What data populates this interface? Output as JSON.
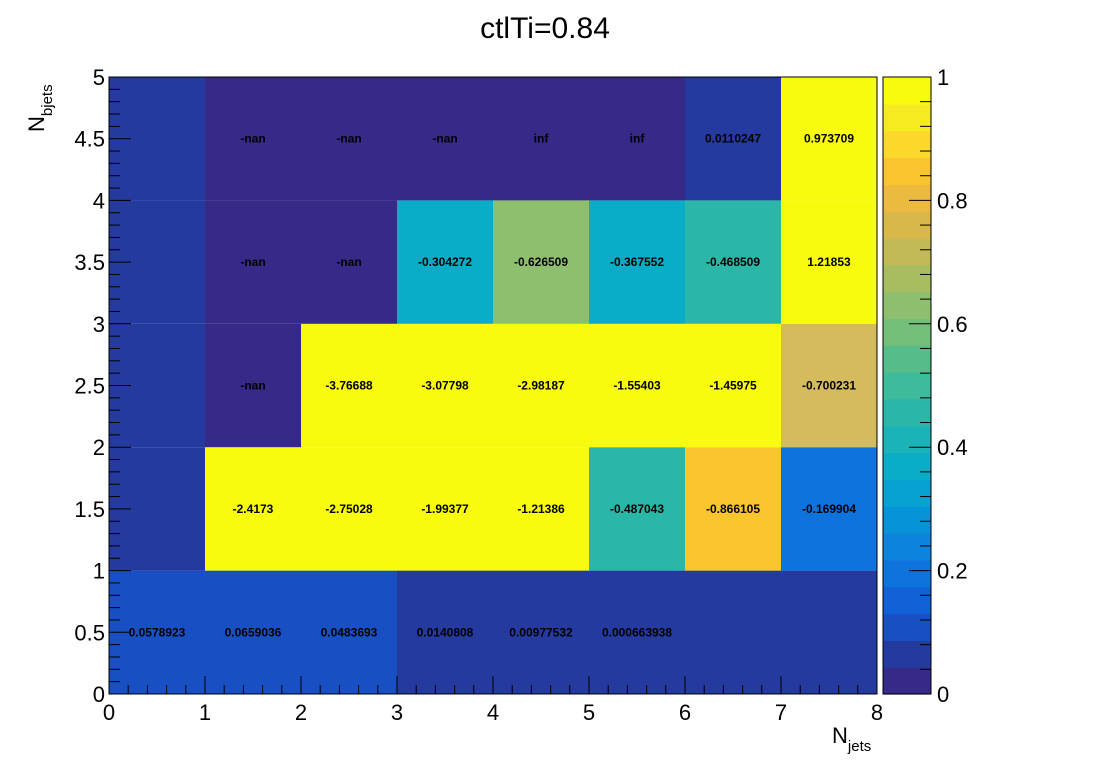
{
  "chart_data": {
    "type": "heatmap",
    "title": "ctlTi=0.84",
    "xlabel": {
      "main": "N",
      "sub": "jets"
    },
    "ylabel": {
      "main": "N",
      "sub": "bjets"
    },
    "xlim": [
      0,
      8
    ],
    "ylim": [
      0,
      5
    ],
    "x_bin_edges": [
      0,
      1,
      2,
      3,
      4,
      5,
      6,
      7,
      8
    ],
    "y_bin_edges": [
      0,
      1,
      2,
      3,
      4,
      5
    ],
    "x_ticks": [
      "0",
      "1",
      "2",
      "3",
      "4",
      "5",
      "6",
      "7",
      "8"
    ],
    "y_ticks": [
      "0",
      "0.5",
      "1",
      "1.5",
      "2",
      "2.5",
      "3",
      "3.5",
      "4",
      "4.5",
      "5"
    ],
    "zlim": [
      0,
      1
    ],
    "z_ticks": [
      "0",
      "0.2",
      "0.4",
      "0.6",
      "0.8",
      "1"
    ],
    "colorbar_colors": [
      "#352a87",
      "#243a9f",
      "#1850c4",
      "#1062d6",
      "#0e73dc",
      "#0d84dc",
      "#0793d8",
      "#07a2d0",
      "#0aadc7",
      "#1ab3b8",
      "#2bb7a8",
      "#3dbb9a",
      "#56bd8a",
      "#73bf7a",
      "#8ebf6e",
      "#a8bd62",
      "#c2b957",
      "#d9b84a",
      "#ecba3e",
      "#f9c52e",
      "#fad92a",
      "#f5eb20",
      "#f9fb0e"
    ],
    "cells": [
      {
        "x": 0,
        "y": 0,
        "label": "0.0578923",
        "color": "#1850c4"
      },
      {
        "x": 1,
        "y": 0,
        "label": "0.0659036",
        "color": "#1850c4"
      },
      {
        "x": 2,
        "y": 0,
        "label": "0.0483693",
        "color": "#1850c4"
      },
      {
        "x": 3,
        "y": 0,
        "label": "0.0140808",
        "color": "#243a9f"
      },
      {
        "x": 4,
        "y": 0,
        "label": "0.00977532",
        "color": "#243a9f"
      },
      {
        "x": 5,
        "y": 0,
        "label": "0.000663938",
        "color": "#243a9f"
      },
      {
        "x": 6,
        "y": 0,
        "label": "",
        "color": "#243a9f"
      },
      {
        "x": 7,
        "y": 0,
        "label": "",
        "color": "#243a9f"
      },
      {
        "x": 0,
        "y": 1,
        "label": "",
        "color": "#243a9f"
      },
      {
        "x": 1,
        "y": 1,
        "label": "-2.4173",
        "color": "#f9fb0e"
      },
      {
        "x": 2,
        "y": 1,
        "label": "-2.75028",
        "color": "#f9fb0e"
      },
      {
        "x": 3,
        "y": 1,
        "label": "-1.99377",
        "color": "#f9fb0e"
      },
      {
        "x": 4,
        "y": 1,
        "label": "-1.21386",
        "color": "#f9fb0e"
      },
      {
        "x": 5,
        "y": 1,
        "label": "-0.487043",
        "color": "#2bb7a8"
      },
      {
        "x": 6,
        "y": 1,
        "label": "-0.866105",
        "color": "#f9c52e"
      },
      {
        "x": 7,
        "y": 1,
        "label": "-0.169904",
        "color": "#0e73dc"
      },
      {
        "x": 0,
        "y": 2,
        "label": "",
        "color": "#243a9f"
      },
      {
        "x": 1,
        "y": 2,
        "label": "-nan",
        "color": "#352a87"
      },
      {
        "x": 2,
        "y": 2,
        "label": "-3.76688",
        "color": "#f9fb0e"
      },
      {
        "x": 3,
        "y": 2,
        "label": "-3.07798",
        "color": "#f9fb0e"
      },
      {
        "x": 4,
        "y": 2,
        "label": "-2.98187",
        "color": "#f9fb0e"
      },
      {
        "x": 5,
        "y": 2,
        "label": "-1.55403",
        "color": "#f9fb0e"
      },
      {
        "x": 6,
        "y": 2,
        "label": "-1.45975",
        "color": "#f9fb0e"
      },
      {
        "x": 7,
        "y": 2,
        "label": "-0.700231",
        "color": "#d4bc5e"
      },
      {
        "x": 0,
        "y": 3,
        "label": "",
        "color": "#243a9f"
      },
      {
        "x": 1,
        "y": 3,
        "label": "-nan",
        "color": "#352a87"
      },
      {
        "x": 2,
        "y": 3,
        "label": "-nan",
        "color": "#352a87"
      },
      {
        "x": 3,
        "y": 3,
        "label": "-0.304272",
        "color": "#0aadc7"
      },
      {
        "x": 4,
        "y": 3,
        "label": "-0.626509",
        "color": "#8ebf6e"
      },
      {
        "x": 5,
        "y": 3,
        "label": "-0.367552",
        "color": "#0aadc7"
      },
      {
        "x": 6,
        "y": 3,
        "label": "-0.468509",
        "color": "#2bb7a8"
      },
      {
        "x": 7,
        "y": 3,
        "label": "1.21853",
        "color": "#f9fb0e"
      },
      {
        "x": 0,
        "y": 4,
        "label": "",
        "color": "#243a9f"
      },
      {
        "x": 1,
        "y": 4,
        "label": "-nan",
        "color": "#352a87"
      },
      {
        "x": 2,
        "y": 4,
        "label": "-nan",
        "color": "#352a87"
      },
      {
        "x": 3,
        "y": 4,
        "label": "-nan",
        "color": "#352a87"
      },
      {
        "x": 4,
        "y": 4,
        "label": "inf",
        "color": "#352a87"
      },
      {
        "x": 5,
        "y": 4,
        "label": "inf",
        "color": "#352a87"
      },
      {
        "x": 6,
        "y": 4,
        "label": "0.0110247",
        "color": "#243a9f"
      },
      {
        "x": 7,
        "y": 4,
        "label": "0.973709",
        "color": "#f9fb0e"
      }
    ]
  }
}
